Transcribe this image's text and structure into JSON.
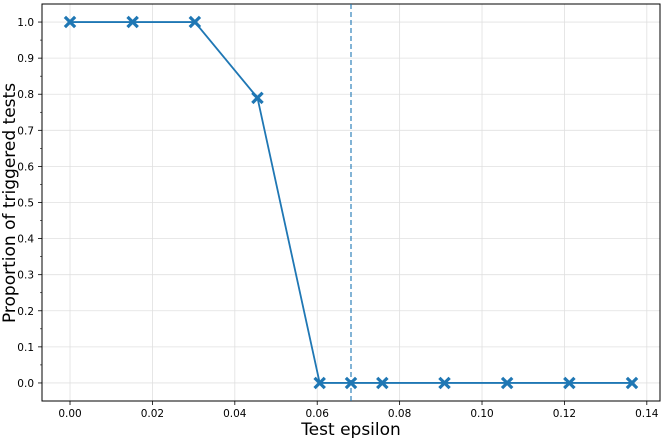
{
  "chart_data": {
    "type": "line",
    "title": "",
    "xlabel": "Test epsilon",
    "ylabel": "Proportion of triggered tests",
    "xlim": [
      -0.0068,
      0.1432
    ],
    "ylim": [
      -0.05,
      1.05
    ],
    "grid": true,
    "x_ticks": [
      "0.00",
      "0.02",
      "0.04",
      "0.06",
      "0.08",
      "0.10",
      "0.12",
      "0.14"
    ],
    "y_ticks": [
      "0.0",
      "0.1",
      "0.2",
      "0.3",
      "0.4",
      "0.5",
      "0.6",
      "0.7",
      "0.8",
      "0.9",
      "1.0"
    ],
    "series": [
      {
        "color": "#1f77b4",
        "marker": "X",
        "x": [
          0.0,
          0.0152,
          0.0303,
          0.0455,
          0.0606,
          0.0682,
          0.0758,
          0.0909,
          0.1061,
          0.1212,
          0.1364
        ],
        "y": [
          1.0,
          1.0,
          1.0,
          0.79,
          0.0,
          0.0,
          0.0,
          0.0,
          0.0,
          0.0,
          0.0
        ]
      }
    ],
    "vline": {
      "x": 0.0682,
      "style": "dashed",
      "color": "#1f77b4"
    }
  }
}
